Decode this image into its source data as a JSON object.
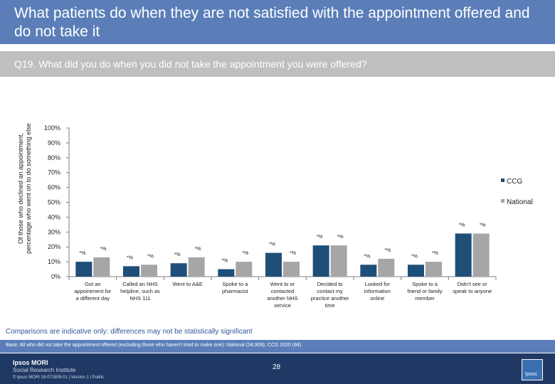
{
  "header": {
    "title": "What patients do when they are not satisfied with the appointment offered and do not take it",
    "question": "Q19. What did you do when you did not take the appointment you were offered?"
  },
  "chart_data": {
    "type": "bar",
    "ylabel_line1": "Of those who declined an appointment,",
    "ylabel_line2": "percentage who went on to do something else",
    "ylim": [
      0,
      100
    ],
    "yticks": [
      "0%",
      "10%",
      "20%",
      "30%",
      "40%",
      "50%",
      "60%",
      "70%",
      "80%",
      "90%",
      "100%"
    ],
    "categories": [
      [
        "Got an",
        "appointment for",
        "a different day"
      ],
      [
        "Called an NHS",
        "helpline, such as",
        "NHS 111"
      ],
      [
        "Went to A&E"
      ],
      [
        "Spoke to a",
        "pharmacist"
      ],
      [
        "Went to or",
        "contacted",
        "another NHS",
        "service"
      ],
      [
        "Decided to",
        "contact my",
        "practice another",
        "time"
      ],
      [
        "Looked for",
        "information",
        "online"
      ],
      [
        "Spoke to a",
        "friend or family",
        "member"
      ],
      [
        "Didn't see or",
        "speak to anyone"
      ]
    ],
    "series": [
      {
        "name": "CCG",
        "color": "#1f4e79",
        "values": [
          10,
          7,
          9,
          5,
          16,
          21,
          8,
          8,
          29
        ]
      },
      {
        "name": "National",
        "color": "#a6a6a6",
        "values": [
          13,
          8,
          13,
          10,
          10,
          21,
          12,
          10,
          29
        ]
      }
    ],
    "data_labels": [
      [
        "*%",
        "*%"
      ],
      [
        "*%",
        "*%"
      ],
      [
        "*%",
        "*%"
      ],
      [
        "*%",
        "*%"
      ],
      [
        "*%",
        "*%"
      ],
      [
        "*%",
        "*%"
      ],
      [
        "*%",
        "*%"
      ],
      [
        "*%",
        "*%"
      ],
      [
        "*%",
        "*%"
      ]
    ],
    "legend": [
      "CCG",
      "National"
    ],
    "legend_position": "right"
  },
  "notes": {
    "comparison": "Comparisons are indicative only: differences may not be statistically significant",
    "base": "Base: All who did not take the appointment offered (excluding those who haven't tried to make one): National (34,909); CCG 2020 (84)"
  },
  "footer": {
    "logo_name": "Ipsos MORI",
    "logo_sub": "Social Research Institute",
    "copyright": "© Ipsos MORI     18-071809-01 | Version 1 | Public",
    "page": "28",
    "badge": "Ipsos"
  }
}
